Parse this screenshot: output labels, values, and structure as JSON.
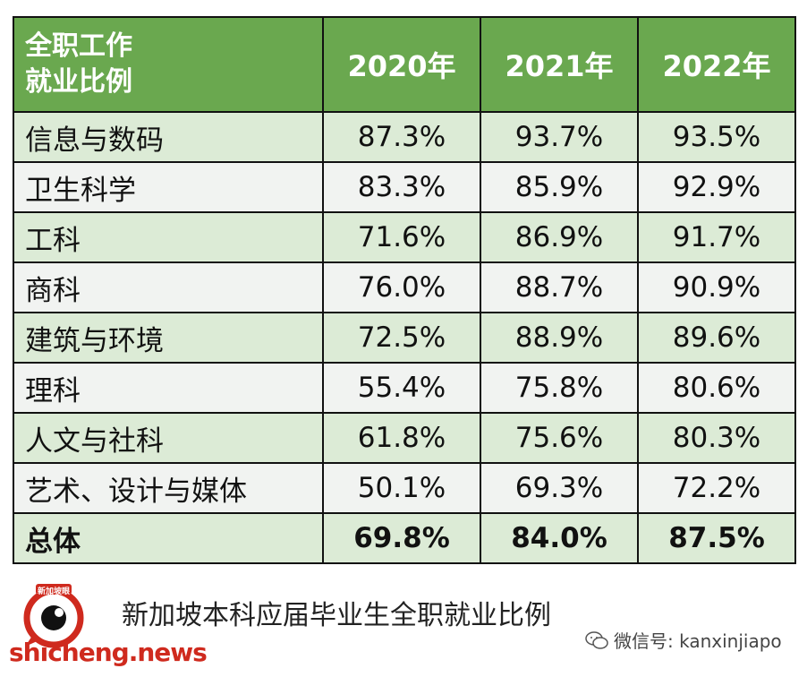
{
  "chart_data": {
    "type": "table",
    "header": {
      "label_line1": "全职工作",
      "label_line2": "就业比例",
      "years": [
        "2020年",
        "2021年",
        "2022年"
      ]
    },
    "rows": [
      {
        "category": "信息与数码",
        "values": [
          "87.3%",
          "93.7%",
          "93.5%"
        ]
      },
      {
        "category": "卫生科学",
        "values": [
          "83.3%",
          "85.9%",
          "92.9%"
        ]
      },
      {
        "category": "工科",
        "values": [
          "71.6%",
          "86.9%",
          "91.7%"
        ]
      },
      {
        "category": "商科",
        "values": [
          "76.0%",
          "88.7%",
          "90.9%"
        ]
      },
      {
        "category": "建筑与环境",
        "values": [
          "72.5%",
          "88.9%",
          "89.6%"
        ]
      },
      {
        "category": "理科",
        "values": [
          "55.4%",
          "75.8%",
          "80.6%"
        ]
      },
      {
        "category": "人文与社科",
        "values": [
          "61.8%",
          "75.6%",
          "80.3%"
        ]
      },
      {
        "category": "艺术、设计与媒体",
        "values": [
          "50.1%",
          "69.3%",
          "72.2%"
        ]
      }
    ],
    "total": {
      "category": "总体",
      "values": [
        "69.8%",
        "84.0%",
        "87.5%"
      ]
    }
  },
  "caption": "新加坡本科应届毕业生全职就业比例",
  "logo": {
    "badge_text": "新加坡眼",
    "site": "shicheng.news"
  },
  "wechat": {
    "icon": "wechat-icon",
    "text": "微信号: kanxinjiapo"
  },
  "colors": {
    "header_bg": "#6aa84f",
    "row_odd": "#dcebd6",
    "row_even": "#f1f3f1",
    "logo_red": "#cf2a1e"
  }
}
